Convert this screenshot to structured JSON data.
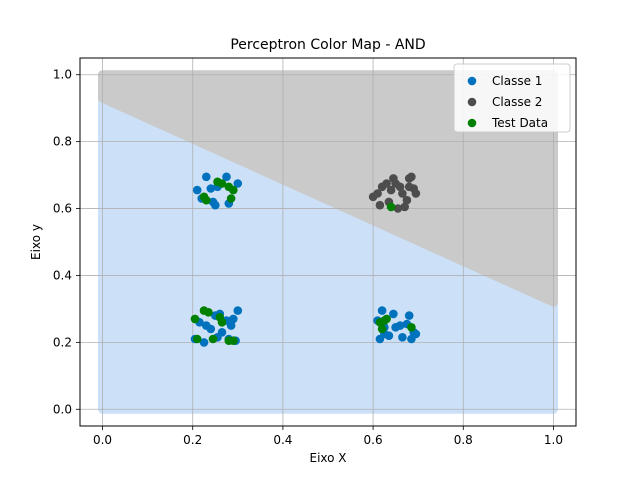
{
  "chart_data": {
    "type": "scatter",
    "title": "Perceptron Color Map - AND",
    "xlabel": "Eixo X",
    "ylabel": "Eixo y",
    "xlim": [
      -0.05,
      1.05
    ],
    "ylim": [
      -0.05,
      1.05
    ],
    "xticks": [
      0.0,
      0.2,
      0.4,
      0.6,
      0.8,
      1.0
    ],
    "yticks": [
      0.0,
      0.2,
      0.4,
      0.6,
      0.8,
      1.0
    ],
    "xtick_labels": [
      "0.0",
      "0.2",
      "0.4",
      "0.6",
      "0.8",
      "1.0"
    ],
    "ytick_labels": [
      "0.0",
      "0.2",
      "0.4",
      "0.6",
      "0.8",
      "1.0"
    ],
    "grid": true,
    "legend_position": "top-right",
    "regions": [
      {
        "polygon": [
          [
            0,
            0
          ],
          [
            1,
            0
          ],
          [
            1,
            0.32
          ],
          [
            0,
            0.93
          ]
        ],
        "color": "#cce0f8"
      },
      {
        "polygon": [
          [
            0,
            0.93
          ],
          [
            1,
            0.32
          ],
          [
            1,
            1
          ],
          [
            0,
            1
          ]
        ],
        "color": "#cacaca"
      }
    ],
    "series": [
      {
        "name": "Classe 1",
        "color": "#0072bd",
        "points": [
          [
            0.21,
            0.655
          ],
          [
            0.23,
            0.695
          ],
          [
            0.24,
            0.66
          ],
          [
            0.25,
            0.61
          ],
          [
            0.255,
            0.665
          ],
          [
            0.275,
            0.695
          ],
          [
            0.28,
            0.615
          ],
          [
            0.3,
            0.675
          ],
          [
            0.22,
            0.63
          ],
          [
            0.245,
            0.62
          ],
          [
            0.205,
            0.21
          ],
          [
            0.215,
            0.26
          ],
          [
            0.225,
            0.2
          ],
          [
            0.23,
            0.25
          ],
          [
            0.24,
            0.24
          ],
          [
            0.25,
            0.28
          ],
          [
            0.255,
            0.215
          ],
          [
            0.26,
            0.285
          ],
          [
            0.265,
            0.23
          ],
          [
            0.275,
            0.265
          ],
          [
            0.28,
            0.21
          ],
          [
            0.285,
            0.25
          ],
          [
            0.29,
            0.27
          ],
          [
            0.3,
            0.295
          ],
          [
            0.295,
            0.205
          ],
          [
            0.61,
            0.265
          ],
          [
            0.615,
            0.21
          ],
          [
            0.62,
            0.295
          ],
          [
            0.625,
            0.225
          ],
          [
            0.635,
            0.22
          ],
          [
            0.645,
            0.285
          ],
          [
            0.65,
            0.245
          ],
          [
            0.66,
            0.25
          ],
          [
            0.665,
            0.215
          ],
          [
            0.675,
            0.255
          ],
          [
            0.68,
            0.28
          ],
          [
            0.685,
            0.21
          ],
          [
            0.69,
            0.23
          ],
          [
            0.695,
            0.225
          ],
          [
            0.625,
            0.245
          ]
        ]
      },
      {
        "name": "Classe 2",
        "color": "#4d4d4d",
        "points": [
          [
            0.6,
            0.635
          ],
          [
            0.61,
            0.645
          ],
          [
            0.615,
            0.61
          ],
          [
            0.62,
            0.665
          ],
          [
            0.63,
            0.675
          ],
          [
            0.635,
            0.62
          ],
          [
            0.64,
            0.655
          ],
          [
            0.645,
            0.69
          ],
          [
            0.65,
            0.675
          ],
          [
            0.655,
            0.6
          ],
          [
            0.66,
            0.665
          ],
          [
            0.665,
            0.645
          ],
          [
            0.67,
            0.605
          ],
          [
            0.675,
            0.625
          ],
          [
            0.68,
            0.665
          ],
          [
            0.685,
            0.695
          ],
          [
            0.69,
            0.66
          ],
          [
            0.695,
            0.645
          ],
          [
            0.68,
            0.69
          ]
        ]
      },
      {
        "name": "Test Data",
        "color": "#008000",
        "points": [
          [
            0.225,
            0.635
          ],
          [
            0.23,
            0.625
          ],
          [
            0.255,
            0.68
          ],
          [
            0.265,
            0.675
          ],
          [
            0.28,
            0.665
          ],
          [
            0.285,
            0.63
          ],
          [
            0.29,
            0.655
          ],
          [
            0.205,
            0.27
          ],
          [
            0.21,
            0.21
          ],
          [
            0.225,
            0.295
          ],
          [
            0.235,
            0.29
          ],
          [
            0.245,
            0.21
          ],
          [
            0.26,
            0.275
          ],
          [
            0.265,
            0.26
          ],
          [
            0.28,
            0.205
          ],
          [
            0.29,
            0.205
          ],
          [
            0.615,
            0.26
          ],
          [
            0.62,
            0.24
          ],
          [
            0.625,
            0.265
          ],
          [
            0.63,
            0.27
          ],
          [
            0.64,
            0.605
          ],
          [
            0.685,
            0.245
          ]
        ]
      }
    ]
  }
}
